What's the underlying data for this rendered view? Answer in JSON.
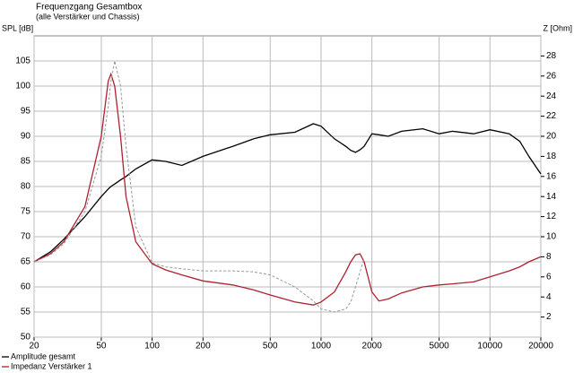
{
  "chart_data": {
    "type": "line",
    "title": "Frequenzgang Gesamtbox",
    "subtitle": "(alle Verstärker und Chassis)",
    "y_label": "SPL [dB]",
    "y2_label": "Z [Ohm]",
    "x_scale": "log",
    "grid": true,
    "legend": "bottom-left",
    "x": [
      20,
      25,
      30,
      40,
      50,
      55,
      57,
      60,
      65,
      70,
      80,
      100,
      120,
      150,
      200,
      300,
      400,
      500,
      700,
      900,
      1000,
      1200,
      1400,
      1500,
      1600,
      1700,
      1800,
      2000,
      2200,
      2500,
      3000,
      4000,
      5000,
      6000,
      8000,
      10000,
      13000,
      15000,
      17000,
      20000
    ],
    "series": [
      {
        "name": "Amplitude gesamt",
        "color": "#000000",
        "values": [
          65,
          67,
          69.5,
          74,
          78,
          79.5,
          80,
          80.5,
          81.3,
          82,
          83.5,
          85.3,
          85,
          84.2,
          86,
          88,
          89.5,
          90.3,
          90.8,
          92.5,
          92,
          89.5,
          88,
          87.2,
          86.8,
          87.3,
          88,
          90.5,
          90.3,
          90,
          91,
          91.5,
          90.5,
          91,
          90.5,
          91.3,
          90.5,
          89,
          86,
          82.5
        ]
      },
      {
        "name": "Impedanz Verstärker 1",
        "color": "#b02030",
        "axis": "y2",
        "values": [
          7.5,
          8.3,
          9.5,
          13,
          20,
          25.5,
          26.2,
          25,
          20,
          14,
          9.5,
          7.3,
          6.7,
          6.2,
          5.6,
          5.2,
          4.7,
          4.2,
          3.5,
          3.2,
          3.5,
          4.5,
          6.5,
          7.5,
          8.2,
          8.3,
          7.5,
          4.5,
          3.6,
          3.8,
          4.4,
          5,
          5.2,
          5.3,
          5.5,
          6,
          6.6,
          7,
          7.5,
          8
        ]
      },
      {
        "color": "#999999",
        "axis": "y2",
        "dashed": true,
        "values": [
          7.5,
          8.2,
          9.3,
          12.5,
          18,
          23,
          25.5,
          27.5,
          25,
          19,
          11,
          7.4,
          7,
          6.8,
          6.6,
          6.6,
          6.5,
          6.2,
          5,
          3.6,
          2.8,
          2.5,
          2.8,
          3.5,
          5,
          6.5,
          7.8,
          null,
          null,
          null,
          null,
          null,
          null,
          null,
          null,
          null,
          null,
          null,
          null,
          null
        ]
      }
    ],
    "xlim": [
      20,
      20000
    ],
    "xticks": [
      20,
      50,
      100,
      200,
      500,
      1000,
      2000,
      5000,
      10000,
      20000
    ],
    "ylim": [
      50,
      110
    ],
    "yticks": [
      50,
      55,
      60,
      65,
      70,
      75,
      80,
      85,
      90,
      95,
      100,
      105
    ],
    "y2lim": [
      0,
      30
    ],
    "y2ticks": [
      2,
      4,
      6,
      8,
      10,
      12,
      14,
      16,
      18,
      20,
      22,
      24,
      26,
      28
    ]
  }
}
